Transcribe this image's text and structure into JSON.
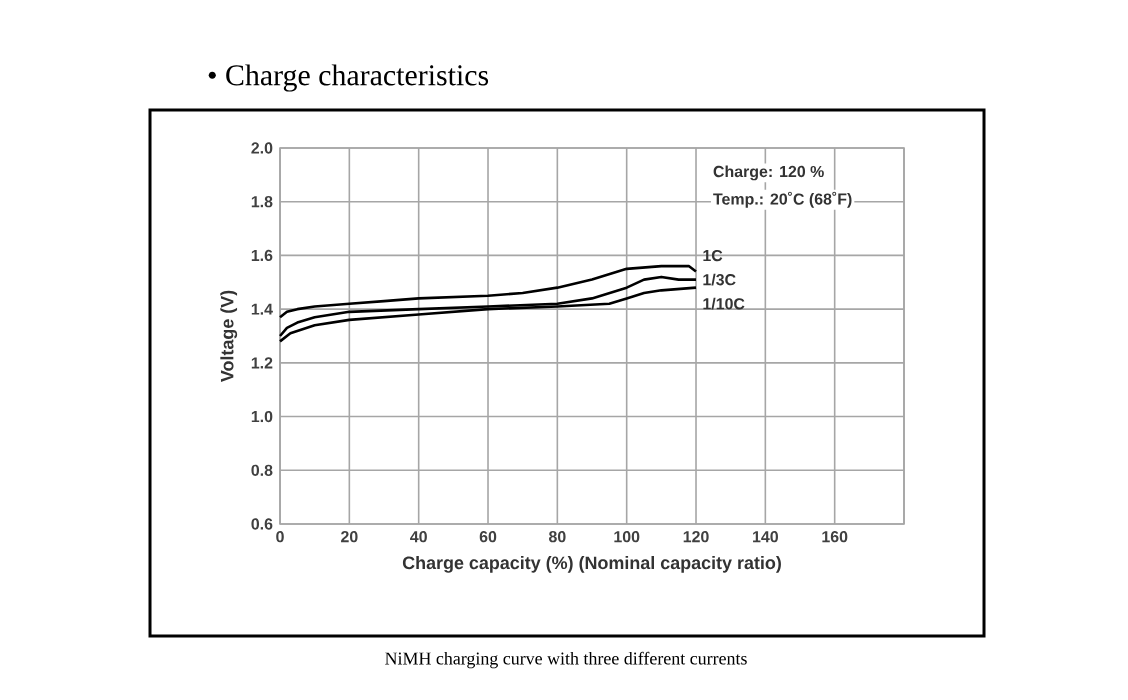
{
  "chart_data": {
    "type": "line",
    "title": "•   Charge characteristics",
    "xlabel": "Charge capacity (%) (Nominal capacity ratio)",
    "ylabel": "Voltage (V)",
    "annotations": [
      "Charge: 120 %",
      "Temp.: 20˚C (68˚F)",
      "NiMH charging curve with three different currents"
    ],
    "xlim": [
      0,
      180
    ],
    "ylim": [
      0.6,
      2.0
    ],
    "xticks": [
      0,
      20,
      40,
      60,
      80,
      100,
      120,
      140,
      160,
      {
        "value": 180,
        "label": null
      }
    ],
    "yticks": [
      0.6,
      0.8,
      {
        "value": 1.0,
        "label": "1.0"
      },
      1.2,
      1.4,
      1.6,
      1.8,
      {
        "value": 2.0,
        "label": "2.0"
      }
    ],
    "grid": true,
    "marker": "none",
    "line_style": "solid",
    "series": [
      {
        "name": "1C",
        "color": "#000000",
        "x": [
          0,
          2,
          5,
          10,
          20,
          30,
          40,
          60,
          70,
          80,
          90,
          100,
          110,
          118,
          120
        ],
        "values": [
          1.37,
          1.39,
          1.4,
          1.41,
          1.42,
          1.43,
          1.44,
          1.45,
          1.46,
          1.48,
          1.51,
          1.55,
          1.56,
          1.56,
          1.54
        ]
      },
      {
        "name": "1/3C",
        "color": "#000000",
        "x": [
          0,
          2,
          5,
          10,
          20,
          40,
          60,
          80,
          90,
          100,
          105,
          110,
          115,
          120
        ],
        "values": [
          1.3,
          1.33,
          1.35,
          1.37,
          1.39,
          1.4,
          1.41,
          1.42,
          1.44,
          1.48,
          1.51,
          1.52,
          1.51,
          1.51
        ]
      },
      {
        "name": "1/10C",
        "color": "#000000",
        "x": [
          0,
          3,
          10,
          20,
          40,
          60,
          80,
          95,
          100,
          105,
          110,
          120
        ],
        "values": [
          1.28,
          1.31,
          1.34,
          1.36,
          1.38,
          1.4,
          1.41,
          1.42,
          1.44,
          1.46,
          1.47,
          1.48
        ]
      }
    ]
  }
}
